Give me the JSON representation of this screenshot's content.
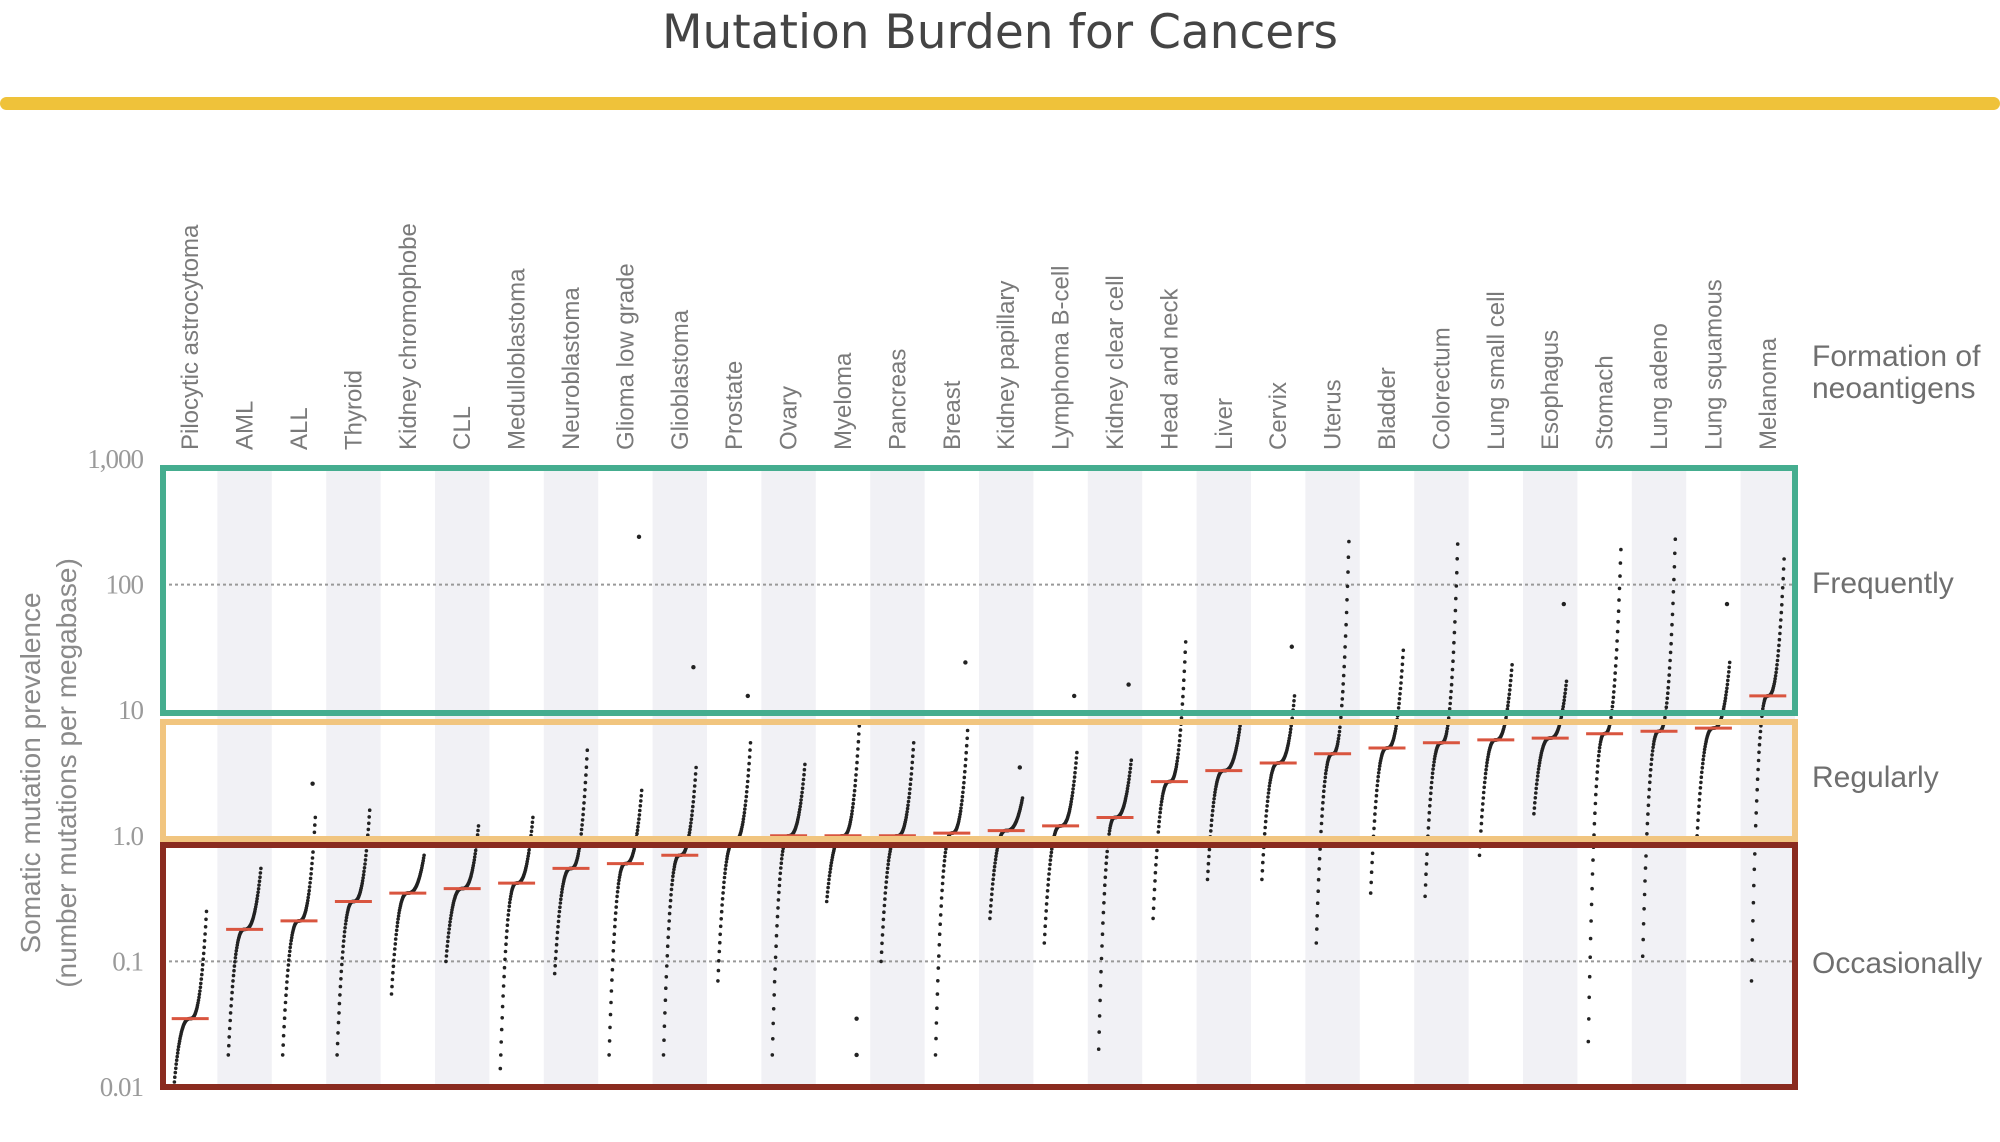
{
  "title": "Mutation Burden for Cancers",
  "colors": {
    "accent_bar": "#efc23a",
    "frequent_box": "#45ad8f",
    "regular_box": "#f1c57f",
    "occasional_box": "#8a2b1f",
    "median": "#d9553f",
    "points": "#222222"
  },
  "chart_data": {
    "type": "scatter",
    "title": "Mutation Burden for Cancers",
    "xlabel": "",
    "ylabel": [
      "Somatic mutation prevalence",
      "(number mutations per megabase)"
    ],
    "yscale": "log",
    "ylim": [
      0.01,
      1000
    ],
    "yticks": [
      "1,000",
      "100",
      "10",
      "1.0",
      "0.1",
      "0.01"
    ],
    "ytick_values": [
      1000,
      100,
      10,
      1,
      0.1,
      0.01
    ],
    "gridlines": [
      100,
      0.1
    ],
    "right_header": [
      "Formation of",
      "neoantigens"
    ],
    "bands": [
      {
        "label": "Frequently",
        "range": [
          10,
          1000
        ]
      },
      {
        "label": "Regularly",
        "range": [
          1,
          10
        ]
      },
      {
        "label": "Occasionally",
        "range": [
          0.01,
          1
        ]
      }
    ],
    "categories": [
      "Pilocytic astrocytoma",
      "AML",
      "ALL",
      "Thyroid",
      "Kidney chromophobe",
      "CLL",
      "Medulloblastoma",
      "Neuroblastoma",
      "Glioma low grade",
      "Glioblastoma",
      "Prostate",
      "Ovary",
      "Myeloma",
      "Pancreas",
      "Breast",
      "Kidney papillary",
      "Lymphoma B-cell",
      "Kidney clear cell",
      "Head and neck",
      "Liver",
      "Cervix",
      "Uterus",
      "Bladder",
      "Colorectum",
      "Lung small cell",
      "Esophagus",
      "Stomach",
      "Lung adeno",
      "Lung squamous",
      "Melanoma"
    ],
    "series": [
      {
        "name": "Pilocytic astrocytoma",
        "min": 0.01,
        "median": 0.035,
        "max": 0.25,
        "outliers": []
      },
      {
        "name": "AML",
        "min": 0.018,
        "median": 0.18,
        "max": 0.55,
        "outliers": []
      },
      {
        "name": "ALL",
        "min": 0.018,
        "median": 0.21,
        "max": 1.4,
        "outliers": [
          2.6
        ]
      },
      {
        "name": "Thyroid",
        "min": 0.018,
        "median": 0.3,
        "max": 1.6,
        "outliers": []
      },
      {
        "name": "Kidney chromophobe",
        "min": 0.055,
        "median": 0.35,
        "max": 0.7,
        "outliers": []
      },
      {
        "name": "CLL",
        "min": 0.1,
        "median": 0.38,
        "max": 1.2,
        "outliers": []
      },
      {
        "name": "Medulloblastoma",
        "min": 0.014,
        "median": 0.42,
        "max": 1.4,
        "outliers": []
      },
      {
        "name": "Neuroblastoma",
        "min": 0.08,
        "median": 0.55,
        "max": 4.8,
        "outliers": []
      },
      {
        "name": "Glioma low grade",
        "min": 0.018,
        "median": 0.6,
        "max": 2.3,
        "outliers": [
          240
        ]
      },
      {
        "name": "Glioblastoma",
        "min": 0.018,
        "median": 0.7,
        "max": 3.5,
        "outliers": [
          22
        ]
      },
      {
        "name": "Prostate",
        "min": 0.07,
        "median": 0.9,
        "max": 5.5,
        "outliers": [
          13
        ]
      },
      {
        "name": "Ovary",
        "min": 0.018,
        "median": 1.0,
        "max": 3.7,
        "outliers": []
      },
      {
        "name": "Myeloma",
        "min": 0.3,
        "median": 1.0,
        "max": 7.5,
        "outliers": [
          0.018,
          0.035
        ]
      },
      {
        "name": "Pancreas",
        "min": 0.1,
        "median": 1.0,
        "max": 5.5,
        "outliers": []
      },
      {
        "name": "Breast",
        "min": 0.018,
        "median": 1.05,
        "max": 8,
        "outliers": [
          24
        ]
      },
      {
        "name": "Kidney papillary",
        "min": 0.22,
        "median": 1.1,
        "max": 2.0,
        "outliers": [
          3.5
        ]
      },
      {
        "name": "Lymphoma B-cell",
        "min": 0.14,
        "median": 1.2,
        "max": 4.6,
        "outliers": [
          13
        ]
      },
      {
        "name": "Kidney clear cell",
        "min": 0.02,
        "median": 1.4,
        "max": 4.0,
        "outliers": [
          16
        ]
      },
      {
        "name": "Head and neck",
        "min": 0.22,
        "median": 2.7,
        "max": 35,
        "outliers": []
      },
      {
        "name": "Liver",
        "min": 0.45,
        "median": 3.3,
        "max": 7.5,
        "outliers": []
      },
      {
        "name": "Cervix",
        "min": 0.45,
        "median": 3.8,
        "max": 13,
        "outliers": [
          32
        ]
      },
      {
        "name": "Uterus",
        "min": 0.14,
        "median": 4.5,
        "max": 220,
        "outliers": []
      },
      {
        "name": "Bladder",
        "min": 0.35,
        "median": 5.0,
        "max": 30,
        "outliers": []
      },
      {
        "name": "Colorectum",
        "min": 0.33,
        "median": 5.5,
        "max": 210,
        "outliers": []
      },
      {
        "name": "Lung small cell",
        "min": 0.7,
        "median": 5.8,
        "max": 23,
        "outliers": []
      },
      {
        "name": "Esophagus",
        "min": 1.5,
        "median": 6.0,
        "max": 17,
        "outliers": [
          70
        ]
      },
      {
        "name": "Stomach",
        "min": 0.023,
        "median": 6.5,
        "max": 190,
        "outliers": []
      },
      {
        "name": "Lung adeno",
        "min": 0.11,
        "median": 6.8,
        "max": 230,
        "outliers": []
      },
      {
        "name": "Lung squamous",
        "min": 1.0,
        "median": 7.2,
        "max": 24,
        "outliers": [
          70
        ]
      },
      {
        "name": "Melanoma",
        "min": 0.07,
        "median": 13,
        "max": 160,
        "outliers": []
      }
    ]
  }
}
